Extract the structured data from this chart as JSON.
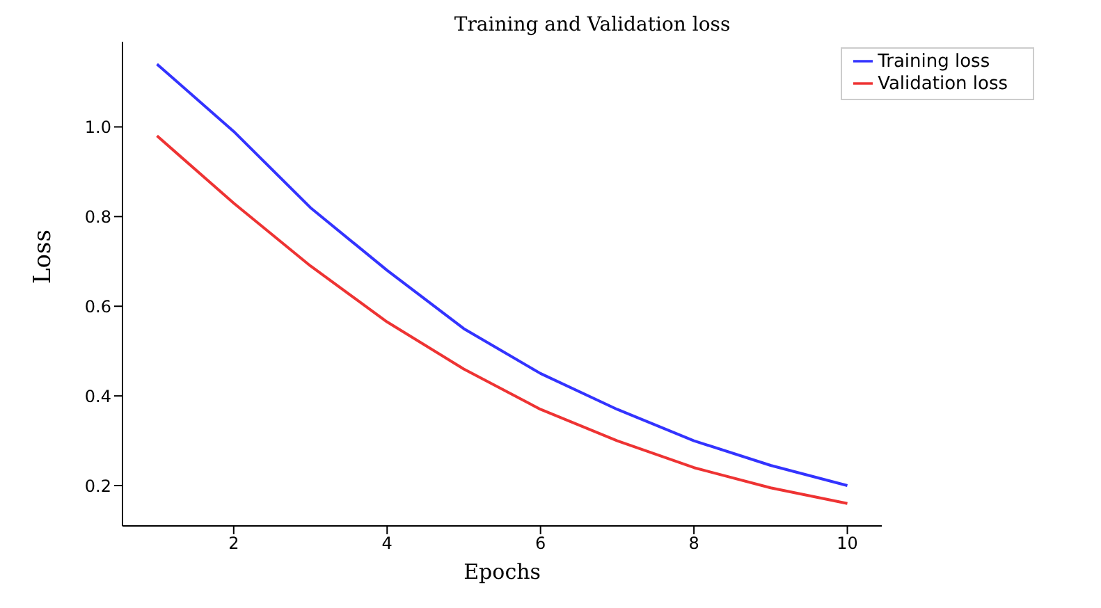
{
  "chart_data": {
    "type": "line",
    "title": "Training and Validation loss",
    "xlabel": "Epochs",
    "ylabel": "Loss",
    "x": [
      1,
      2,
      3,
      4,
      5,
      6,
      7,
      8,
      9,
      10
    ],
    "series": [
      {
        "name": "Training loss",
        "color": "#3333ff",
        "values": [
          1.14,
          0.99,
          0.82,
          0.68,
          0.55,
          0.45,
          0.37,
          0.3,
          0.245,
          0.2
        ]
      },
      {
        "name": "Validation loss",
        "color": "#ee3333",
        "values": [
          0.98,
          0.83,
          0.69,
          0.565,
          0.46,
          0.37,
          0.3,
          0.24,
          0.195,
          0.16
        ]
      }
    ],
    "xlim": [
      0.55,
      10.45
    ],
    "ylim": [
      0.11,
      1.19
    ],
    "xticks": [
      2,
      4,
      6,
      8,
      10
    ],
    "yticks": [
      {
        "value": 0.2,
        "label": "0.2"
      },
      {
        "value": 0.4,
        "label": "0.4"
      },
      {
        "value": 0.6,
        "label": "0.6"
      },
      {
        "value": 0.8,
        "label": "0.8"
      },
      {
        "value": 1,
        "label": "1.0"
      }
    ],
    "grid": false,
    "legend": "top right",
    "marker": "none",
    "line_style": "solid"
  }
}
